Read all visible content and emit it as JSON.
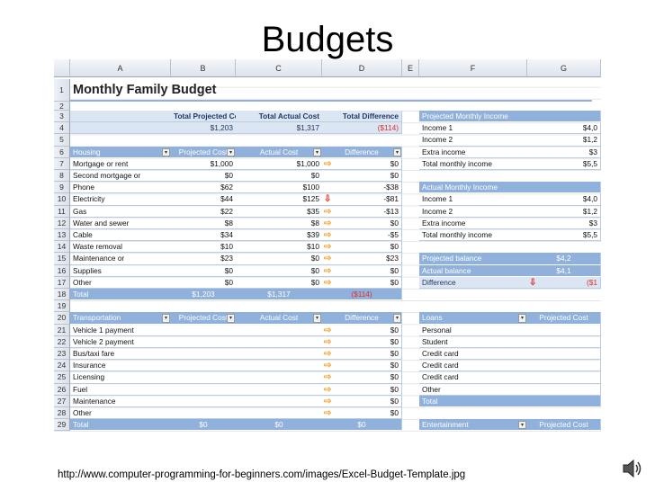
{
  "title": "Budgets",
  "caption": "http://www.computer-programming-for-beginners.com/images/Excel-Budget-Template.jpg",
  "sheet": {
    "columns": [
      "A",
      "B",
      "C",
      "D",
      "E",
      "F",
      "G"
    ],
    "colors": {
      "band": "#8fb1dc",
      "light": "#dce6f2",
      "line": "#b8cce4",
      "red": "#e0302a",
      "arrow": "#f0a030"
    },
    "rows": [
      {
        "n": "1",
        "cells": [
          "Monthly Family Budget",
          null,
          null,
          null,
          null,
          null,
          null
        ],
        "left": "title"
      },
      {
        "n": "2",
        "cells": [
          null,
          null,
          null,
          null,
          null,
          null,
          null
        ]
      },
      {
        "n": "3",
        "cells": [
          null,
          "Total Projected Cost",
          "Total Actual Cost",
          "Total Difference",
          null,
          "Projected Monthly Income",
          null
        ],
        "left": "light",
        "right": "band"
      },
      {
        "n": "4",
        "cells": [
          null,
          "$1,203",
          "$1,317",
          "($114)",
          null,
          "Income 1",
          "$4,0"
        ],
        "left": "light",
        "right": "plain",
        "red": [
          "D"
        ]
      },
      {
        "n": "5",
        "cells": [
          null,
          null,
          null,
          null,
          null,
          "Income 2",
          "$1,2"
        ],
        "right": "plain"
      },
      {
        "n": "6",
        "cells": [
          "Housing",
          "Projected Cost",
          "Actual Cost",
          "Difference",
          null,
          "Extra income",
          "$3"
        ],
        "left": "band",
        "right": "plain",
        "filters": [
          "A",
          "B",
          "C",
          "D"
        ]
      },
      {
        "n": "7",
        "cells": [
          "Mortgage or rent",
          "$1,000",
          "$1,000",
          "$0",
          null,
          "Total monthly income",
          "$5,5"
        ],
        "left": "plain",
        "right": "plain",
        "icons": {
          "D": "right"
        }
      },
      {
        "n": "8",
        "cells": [
          "Second mortgage or",
          "$0",
          "$0",
          "$0",
          null,
          null,
          null
        ],
        "left": "plain"
      },
      {
        "n": "9",
        "cells": [
          "Phone",
          "$62",
          "$100",
          "-$38",
          null,
          "Actual Monthly Income",
          null
        ],
        "left": "plain",
        "right": "band"
      },
      {
        "n": "10",
        "cells": [
          "Electricity",
          "$44",
          "$125",
          "-$81",
          null,
          "Income 1",
          "$4,0"
        ],
        "left": "plain",
        "right": "plain",
        "icons": {
          "D": "down"
        }
      },
      {
        "n": "11",
        "cells": [
          "Gas",
          "$22",
          "$35",
          "-$13",
          null,
          "Income 2",
          "$1,2"
        ],
        "left": "plain",
        "right": "plain",
        "icons": {
          "D": "right"
        }
      },
      {
        "n": "12",
        "cells": [
          "Water and sewer",
          "$8",
          "$8",
          "$0",
          null,
          "Extra income",
          "$3"
        ],
        "left": "plain",
        "right": "plain",
        "icons": {
          "D": "right"
        }
      },
      {
        "n": "13",
        "cells": [
          "Cable",
          "$34",
          "$39",
          "-$5",
          null,
          "Total monthly income",
          "$5,5"
        ],
        "left": "plain",
        "right": "plain",
        "icons": {
          "D": "right"
        }
      },
      {
        "n": "14",
        "cells": [
          "Waste removal",
          "$10",
          "$10",
          "$0",
          null,
          null,
          null
        ],
        "left": "plain",
        "icons": {
          "D": "right"
        }
      },
      {
        "n": "15",
        "cells": [
          "Maintenance or",
          "$23",
          "$0",
          "$23",
          null,
          "Projected balance",
          "$4,2"
        ],
        "left": "plain",
        "right": "band",
        "icons": {
          "D": "right"
        }
      },
      {
        "n": "16",
        "cells": [
          "Supplies",
          "$0",
          "$0",
          "$0",
          null,
          "Actual balance",
          "$4,1"
        ],
        "left": "plain",
        "right": "band",
        "icons": {
          "D": "right"
        }
      },
      {
        "n": "17",
        "cells": [
          "Other",
          "$0",
          "$0",
          "$0",
          null,
          "Difference",
          "($1"
        ],
        "left": "plain",
        "right": "light",
        "red": [
          "G"
        ],
        "icons": {
          "D": "right",
          "G": "down"
        }
      },
      {
        "n": "18",
        "cells": [
          "Total",
          "$1,203",
          "$1,317",
          "($114)",
          null,
          null,
          null
        ],
        "left": "band",
        "red": [
          "D"
        ]
      },
      {
        "n": "19",
        "cells": [
          null,
          null,
          null,
          null,
          null,
          null,
          null
        ]
      },
      {
        "n": "20",
        "cells": [
          "Transportation",
          "Projected Cost",
          "Actual Cost",
          "Difference",
          null,
          "Loans",
          "Projected Cost"
        ],
        "left": "band",
        "right": "band",
        "filters": [
          "A",
          "B",
          "C",
          "D",
          "F"
        ]
      },
      {
        "n": "21",
        "cells": [
          "Vehicle 1 payment",
          null,
          null,
          "$0",
          null,
          "Personal",
          null
        ],
        "left": "plain",
        "right": "plain",
        "icons": {
          "D": "right"
        }
      },
      {
        "n": "22",
        "cells": [
          "Vehicle 2 payment",
          null,
          null,
          "$0",
          null,
          "Student",
          null
        ],
        "left": "plain",
        "right": "plain",
        "icons": {
          "D": "right"
        }
      },
      {
        "n": "23",
        "cells": [
          "Bus/taxi fare",
          null,
          null,
          "$0",
          null,
          "Credit card",
          null
        ],
        "left": "plain",
        "right": "plain",
        "icons": {
          "D": "right"
        }
      },
      {
        "n": "24",
        "cells": [
          "Insurance",
          null,
          null,
          "$0",
          null,
          "Credit card",
          null
        ],
        "left": "plain",
        "right": "plain",
        "icons": {
          "D": "right"
        }
      },
      {
        "n": "25",
        "cells": [
          "Licensing",
          null,
          null,
          "$0",
          null,
          "Credit card",
          null
        ],
        "left": "plain",
        "right": "plain",
        "icons": {
          "D": "right"
        }
      },
      {
        "n": "26",
        "cells": [
          "Fuel",
          null,
          null,
          "$0",
          null,
          "Other",
          null
        ],
        "left": "plain",
        "right": "plain",
        "icons": {
          "D": "right"
        }
      },
      {
        "n": "27",
        "cells": [
          "Maintenance",
          null,
          null,
          "$0",
          null,
          "Total",
          null
        ],
        "left": "plain",
        "right": "band",
        "icons": {
          "D": "right"
        }
      },
      {
        "n": "28",
        "cells": [
          "Other",
          null,
          null,
          "$0",
          null,
          null,
          null
        ],
        "left": "plain",
        "icons": {
          "D": "right"
        }
      },
      {
        "n": "29",
        "cells": [
          "Total",
          "$0",
          "$0",
          "$0",
          null,
          "Entertainment",
          "Projected Cost"
        ],
        "left": "band",
        "right": "band",
        "filters": [
          "F"
        ]
      }
    ]
  }
}
